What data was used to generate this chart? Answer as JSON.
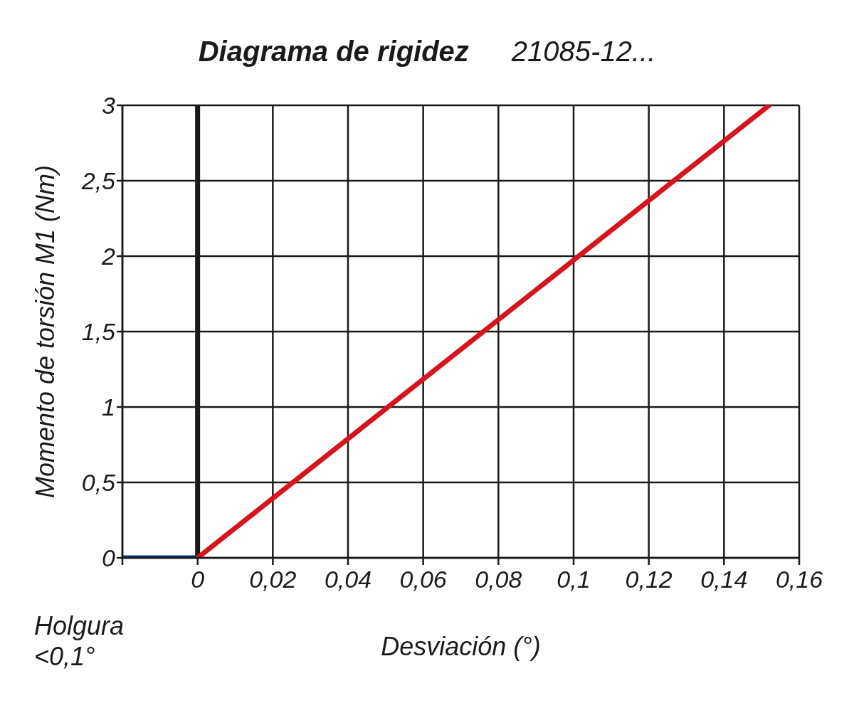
{
  "chart_data": {
    "type": "line",
    "title": "Diagrama de rigidez",
    "subtitle": "21085-12...",
    "xlabel": "Desviación (°)",
    "ylabel": "Momento de torsión M1 (Nm)",
    "annotations": [
      "Holgura <0,1°"
    ],
    "series": [
      {
        "x": [
          -0.02,
          0
        ],
        "values": [
          0,
          0
        ],
        "color": "#003a80"
      },
      {
        "x": [
          0,
          0.152
        ],
        "values": [
          0,
          3
        ],
        "color": "#d7141c"
      }
    ],
    "xlim": [
      -0.02,
      0.16
    ],
    "xticks": [
      {
        "value": -0.02,
        "label": null
      },
      0,
      {
        "value": 0.02,
        "label": "0,02"
      },
      {
        "value": 0.04,
        "label": "0,04"
      },
      {
        "value": 0.06,
        "label": "0,06"
      },
      {
        "value": 0.08,
        "label": "0,08"
      },
      {
        "value": 0.1,
        "label": "0,1"
      },
      {
        "value": 0.12,
        "label": "0,12"
      },
      {
        "value": 0.14,
        "label": "0,14"
      },
      {
        "value": 0.16,
        "label": "0,16"
      }
    ],
    "ylim": [
      0,
      3
    ],
    "yticks": [
      0,
      {
        "value": 0.5,
        "label": "0,5"
      },
      1,
      {
        "value": 1.5,
        "label": "1,5"
      },
      2,
      {
        "value": 2.5,
        "label": "2,5"
      },
      3
    ],
    "ref_lines": [
      {
        "axis": "x",
        "value": 0,
        "label": null,
        "color": "#1a1a1a"
      }
    ],
    "grid": true,
    "marker": "none",
    "line_style": "solid",
    "legend": false
  }
}
